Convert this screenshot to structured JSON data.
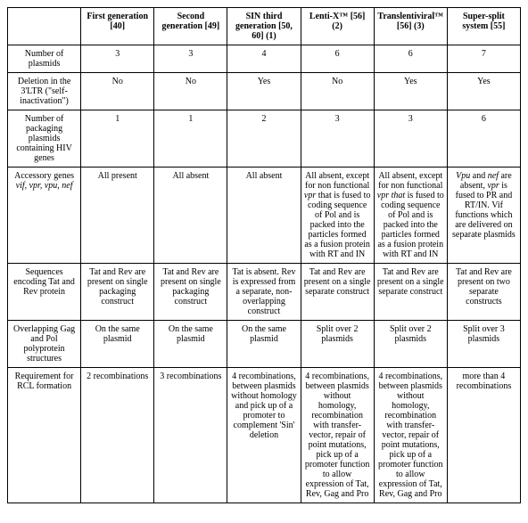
{
  "columns": [
    "First generation [40]",
    "Second generation [49]",
    "SIN third generation [50, 60] (1)",
    "Lenti-X™ [56] (2)",
    "Translentiviral™ [56] (3)",
    "Super-split system [55]"
  ],
  "rows": [
    {
      "label": "Number of plasmids",
      "cells": [
        "3",
        "3",
        "4",
        "6",
        "6",
        "7"
      ]
    },
    {
      "label": "Deletion in the 3'LTR (\"self-inactivation\")",
      "cells": [
        "No",
        "No",
        "Yes",
        "No",
        "Yes",
        "Yes"
      ]
    },
    {
      "label": "Number of packaging plasmids containing HIV genes",
      "cells": [
        "1",
        "1",
        "2",
        "3",
        "3",
        "6"
      ]
    },
    {
      "label_html": "Accessory genes <span class=\"it\">vif, vpr, vpu, nef</span>",
      "cells": [
        "All present",
        "All absent",
        "All absent",
        "All absent, except for non functional <span class=\"it\">vpr</span> that is fused to coding sequence of Pol and is packed into the particles formed as a fusion protein with RT and IN",
        "All absent, except for non functional <span class=\"it\">vpr that</span> is fused to coding sequence of Pol and is packed into the particles formed as a fusion protein with RT and IN",
        "<span class=\"it\">Vpu</span> and <span class=\"it\">nef</span> are absent, <span class=\"it\">vpr</span> is fused to PR and RT/IN. Vif functions which are delivered on separate plasmids"
      ]
    },
    {
      "label": "Sequences encoding Tat and Rev protein",
      "cells": [
        "Tat and Rev are present on single packaging construct",
        "Tat and Rev are present on single packaging construct",
        "Tat is absent. Rev is expressed from a separate, non-overlapping construct",
        "Tat and Rev are present on a single separate construct",
        "Tat and Rev are present on a single separate construct",
        "Tat and Rev are present on two separate constructs"
      ]
    },
    {
      "label": "Overlapping Gag and Pol polyprotein structures",
      "cells": [
        "On the same plasmid",
        "On the same plasmid",
        "On the same plasmid",
        "Split over 2 plasmids",
        "Split over 2 plasmids",
        "Split over 3 plasmids"
      ]
    },
    {
      "label": "Requirement for RCL formation",
      "cells": [
        "2 recombinations",
        "3 recombinations",
        "4 recombinations, between plasmids without homology and pick up of a promoter to complement 'Sin' deletion",
        "4 recombinations, between plasmids without homology, recombination with transfer-vector, repair of point mutations, pick up of a promoter function to allow expression of Tat, Rev, Gag and Pro",
        "4 recombinations, between plasmids without homology, recombination with transfer-vector, repair of point mutations, pick up of a promoter function to allow expression of Tat, Rev, Gag and Pro",
        "more than 4 recombinations"
      ]
    }
  ],
  "style": {
    "font_family": "Times New Roman",
    "font_size_pt": 8,
    "header_weight": "bold",
    "border_color": "#000000",
    "background_color": "#ffffff",
    "text_color": "#000000",
    "cell_align": "center"
  }
}
